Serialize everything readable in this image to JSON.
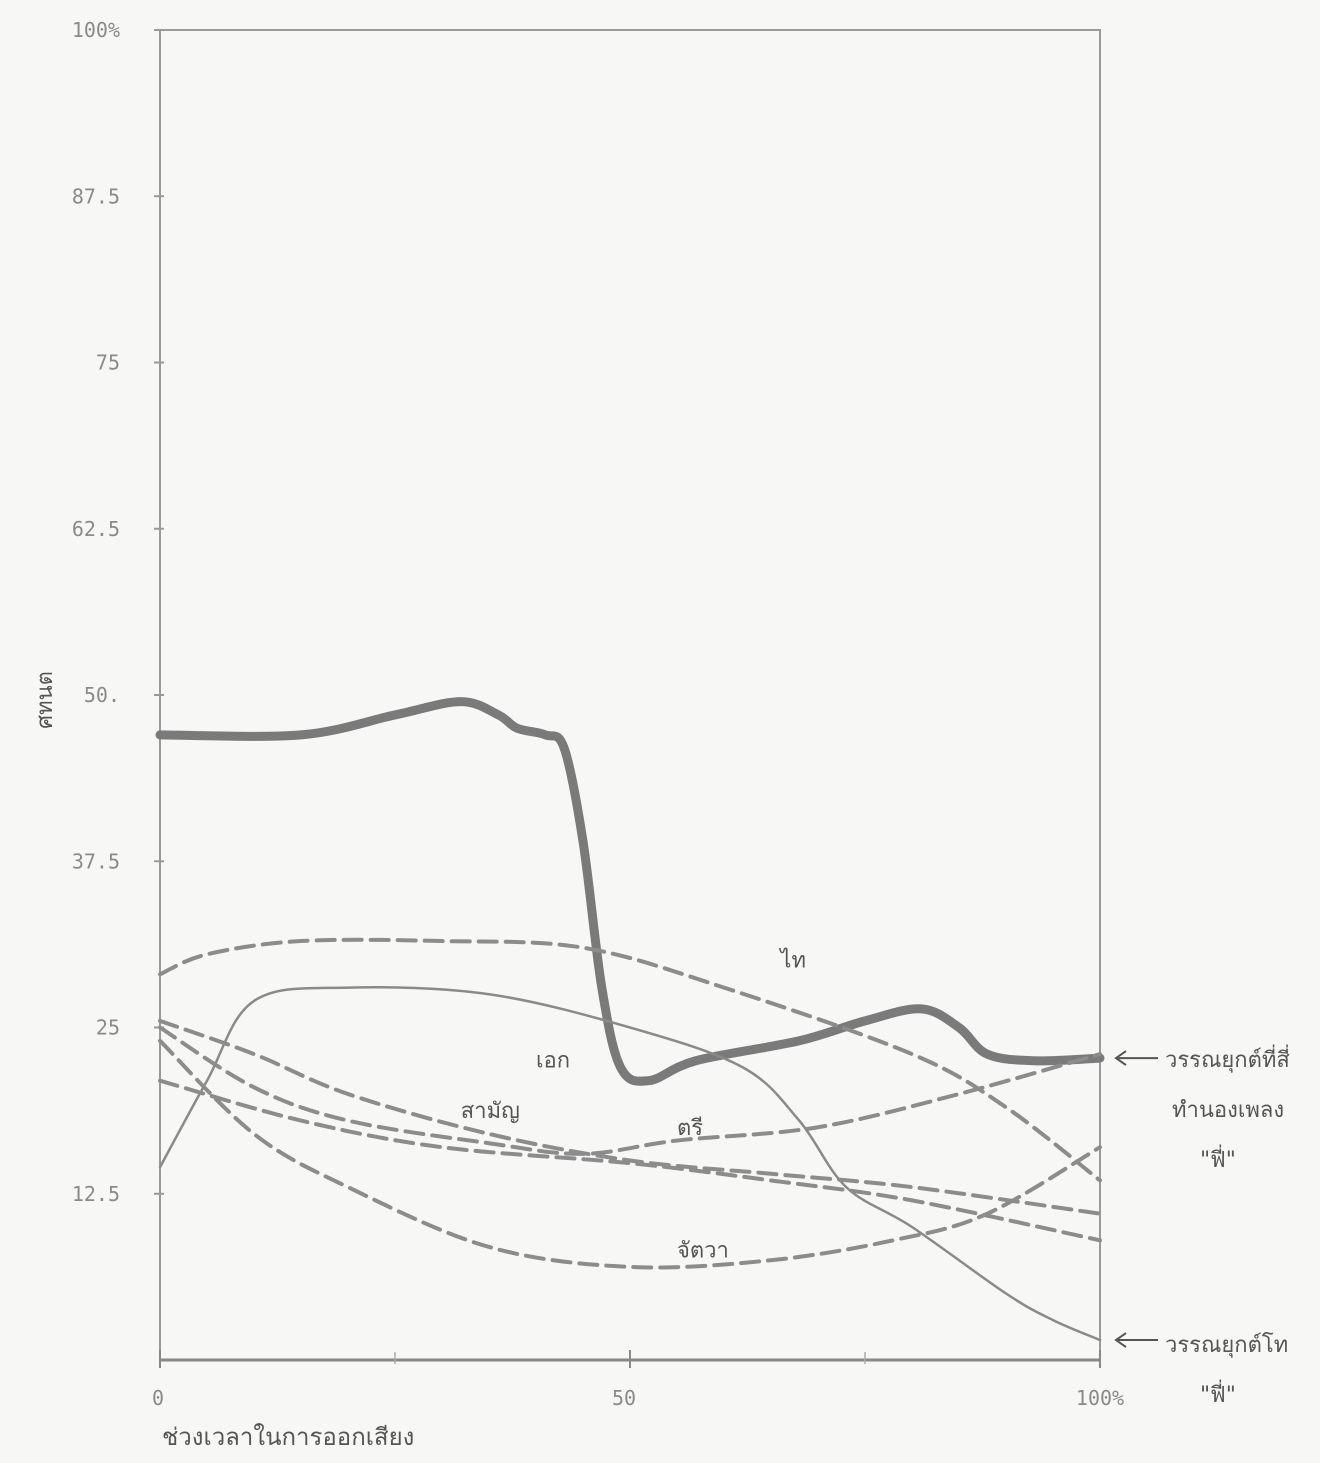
{
  "chart_data": {
    "type": "line",
    "title": "",
    "xlabel": "ช่วงเวลาในการออกเสียง",
    "ylabel": "ศทนต",
    "xlim": [
      0,
      100
    ],
    "ylim": [
      0,
      100
    ],
    "x_ticks": [
      "0",
      "50",
      "100%"
    ],
    "y_ticks": [
      "100%",
      "87.5",
      "75",
      "62.5",
      "50.",
      "37.5",
      "25",
      "12.5"
    ],
    "grid": false,
    "series": [
      {
        "name": "",
        "style": "thick-solid",
        "points": [
          [
            0,
            47
          ],
          [
            15,
            47
          ],
          [
            25,
            48.5
          ],
          [
            32,
            49.5
          ],
          [
            36,
            48.5
          ],
          [
            38,
            47.5
          ],
          [
            41,
            47
          ],
          [
            43,
            46
          ],
          [
            45,
            39
          ],
          [
            47,
            28
          ],
          [
            49,
            22
          ],
          [
            52,
            21
          ],
          [
            57,
            22.5
          ],
          [
            68,
            24
          ],
          [
            75,
            25.5
          ],
          [
            81,
            26.4
          ],
          [
            85,
            25
          ],
          [
            88,
            23
          ],
          [
            93,
            22.5
          ],
          [
            100,
            22.7
          ]
        ]
      },
      {
        "name": "",
        "style": "thin-solid",
        "points": [
          [
            0,
            14.5
          ],
          [
            5,
            21
          ],
          [
            10,
            27
          ],
          [
            20,
            28
          ],
          [
            35,
            27.5
          ],
          [
            50,
            25
          ],
          [
            62,
            22
          ],
          [
            68,
            18
          ],
          [
            73,
            13
          ],
          [
            80,
            10
          ],
          [
            90,
            5
          ],
          [
            95,
            3
          ],
          [
            100,
            1.5
          ]
        ]
      },
      {
        "name": "ไท",
        "style": "dashed",
        "points": [
          [
            0,
            29
          ],
          [
            5,
            30.5
          ],
          [
            15,
            31.5
          ],
          [
            30,
            31.5
          ],
          [
            45,
            31
          ],
          [
            60,
            28
          ],
          [
            80,
            23
          ],
          [
            90,
            19
          ],
          [
            100,
            13.5
          ]
        ]
      },
      {
        "name": "เอก",
        "style": "dashed",
        "points": [
          [
            0,
            25.5
          ],
          [
            10,
            23
          ],
          [
            20,
            20
          ],
          [
            35,
            17
          ],
          [
            50,
            15
          ],
          [
            65,
            14
          ],
          [
            80,
            13
          ],
          [
            100,
            11
          ]
        ]
      },
      {
        "name": "ตรี",
        "style": "dashed",
        "points": [
          [
            0,
            25
          ],
          [
            10,
            20.5
          ],
          [
            20,
            18
          ],
          [
            35,
            16.3
          ],
          [
            45,
            15.5
          ],
          [
            55,
            16.5
          ],
          [
            70,
            17.5
          ],
          [
            85,
            20
          ],
          [
            100,
            23
          ]
        ]
      },
      {
        "name": "สามัญ",
        "style": "dashed",
        "points": [
          [
            0,
            21
          ],
          [
            15,
            18
          ],
          [
            30,
            16
          ],
          [
            50,
            14.8
          ],
          [
            65,
            13.5
          ],
          [
            80,
            12
          ],
          [
            100,
            9
          ]
        ]
      },
      {
        "name": "จัตวา",
        "style": "dashed",
        "points": [
          [
            0,
            24
          ],
          [
            10,
            17
          ],
          [
            20,
            13
          ],
          [
            35,
            8.5
          ],
          [
            50,
            7
          ],
          [
            65,
            7.5
          ],
          [
            78,
            9
          ],
          [
            88,
            11
          ],
          [
            100,
            16
          ]
        ]
      }
    ],
    "annotations": [
      {
        "text": "วรรณยุกต์ที่สี่",
        "line": 1
      },
      {
        "text": "ทำนองเพลง",
        "line": 2
      },
      {
        "text": "\"ฟี่\"",
        "line": 3
      },
      {
        "text": "วรรณยุกต์โท",
        "line": 4
      },
      {
        "text": "\"ฟี่\"",
        "line": 5
      }
    ]
  }
}
